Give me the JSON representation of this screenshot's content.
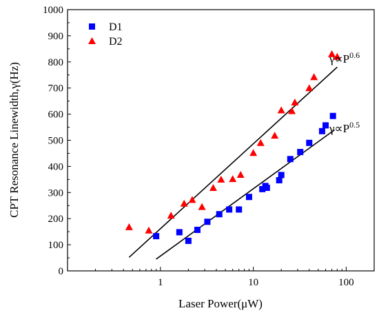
{
  "chart_data": {
    "type": "scatter",
    "xscale": "log",
    "xlim": [
      0.1,
      200
    ],
    "ylim": [
      0,
      1000
    ],
    "xticks": [
      1,
      10,
      100
    ],
    "xtick_labels": [
      "1",
      "10",
      "100"
    ],
    "yticks": [
      0,
      100,
      200,
      300,
      400,
      500,
      600,
      700,
      800,
      900,
      1000
    ],
    "ytick_labels": [
      "0",
      "100",
      "200",
      "300",
      "400",
      "500",
      "600",
      "700",
      "800",
      "900",
      "1000"
    ],
    "xlabel": "Laser Power(μW)",
    "ylabel": "CPT Resonance Linewidth,γ(Hz)",
    "legend_position": "top-left",
    "series": [
      {
        "name": "D1",
        "marker": "square",
        "color": "#0000ff",
        "x": [
          0.9,
          1.6,
          2.0,
          2.5,
          3.2,
          4.3,
          5.5,
          7.0,
          9.0,
          12.5,
          13.5,
          14.0,
          19.0,
          20.0,
          25.0,
          32.0,
          40.0,
          55.0,
          60.0,
          72.0
        ],
        "y": [
          133,
          148,
          115,
          157,
          188,
          217,
          235,
          235,
          283,
          313,
          325,
          318,
          347,
          367,
          428,
          455,
          490,
          535,
          557,
          593
        ]
      },
      {
        "name": "D2",
        "marker": "triangle",
        "color": "#ff0000",
        "x": [
          0.46,
          0.75,
          1.3,
          1.8,
          2.2,
          2.8,
          3.7,
          4.5,
          6.0,
          7.3,
          10.0,
          12.0,
          17.0,
          20.0,
          26.0,
          28.0,
          40.0,
          45.0,
          70.0,
          80.0
        ],
        "y": [
          168,
          155,
          212,
          258,
          272,
          245,
          318,
          350,
          352,
          368,
          452,
          490,
          518,
          615,
          612,
          645,
          700,
          742,
          830,
          820
        ]
      }
    ],
    "fit_lines": [
      {
        "label": "γ∝P",
        "exponent": "0.6",
        "x": [
          0.46,
          80.0
        ],
        "y": [
          52,
          780
        ]
      },
      {
        "label": "γ∝P",
        "exponent": "0.5",
        "x": [
          0.9,
          75.0
        ],
        "y": [
          45,
          540
        ]
      }
    ]
  }
}
